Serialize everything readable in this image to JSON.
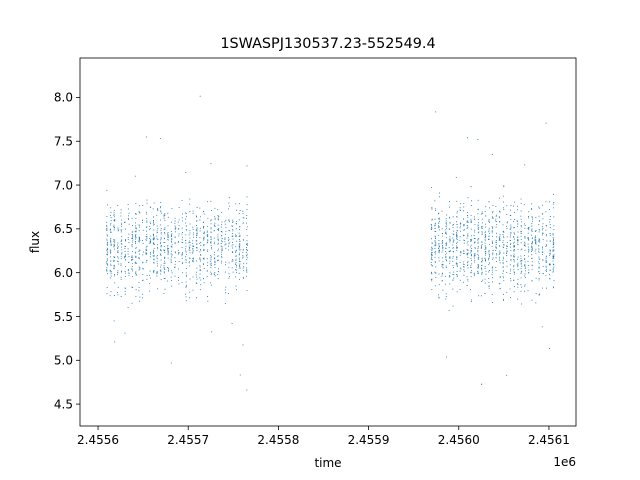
{
  "chart_data": {
    "type": "scatter",
    "title": "1SWASPJ130537.23-552549.4",
    "xlabel": "time",
    "ylabel": "flux",
    "x_offset_label": "1e6",
    "xlim": [
      2455580,
      2456130
    ],
    "ylim": [
      4.25,
      8.45
    ],
    "x_ticks": [
      2455600,
      2455700,
      2455800,
      2455900,
      2456000,
      2456100
    ],
    "x_tick_labels": [
      "2.4556",
      "2.4557",
      "2.4558",
      "2.4559",
      "2.4560",
      "2.4561"
    ],
    "y_ticks": [
      4.5,
      5.0,
      5.5,
      6.0,
      6.5,
      7.0,
      7.5,
      8.0
    ],
    "y_tick_labels": [
      "4.5",
      "5.0",
      "5.5",
      "6.0",
      "6.5",
      "7.0",
      "7.5",
      "8.0"
    ],
    "grid": false,
    "point_color": "#1f77b4",
    "segments": [
      {
        "x_start": 2455610,
        "x_end": 2455765,
        "y_center": 6.3,
        "y_spread": 0.4,
        "y_min": 4.5,
        "y_max": 8.2
      },
      {
        "x_start": 2455970,
        "x_end": 2456105,
        "y_center": 6.3,
        "y_spread": 0.42,
        "y_min": 4.45,
        "y_max": 8.2
      }
    ],
    "points_per_segment": 1200
  }
}
